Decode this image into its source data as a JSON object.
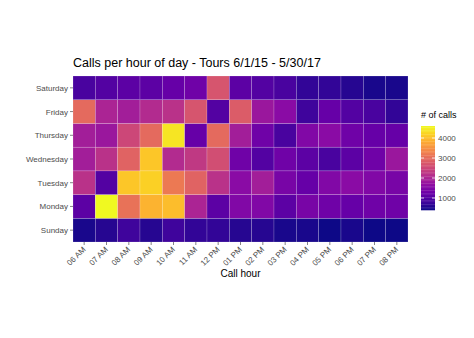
{
  "chart_data": {
    "type": "heatmap",
    "title": "Calls per hour of day - Tours 6/1/15 - 5/30/17",
    "xlabel": "Call hour",
    "x": [
      "06 AM",
      "07 AM",
      "08 AM",
      "09 AM",
      "10 AM",
      "11 AM",
      "12 PM",
      "01 PM",
      "02 PM",
      "03 PM",
      "04 PM",
      "05 PM",
      "06 PM",
      "07 PM",
      "08 PM"
    ],
    "y": [
      "Sunday",
      "Monday",
      "Tuesday",
      "Wednesday",
      "Thursday",
      "Friday",
      "Saturday"
    ],
    "values": [
      [
        500,
        600,
        800,
        600,
        800,
        700,
        700,
        600,
        600,
        500,
        500,
        400,
        500,
        400,
        400
      ],
      [
        1100,
        4600,
        3100,
        3900,
        4000,
        2000,
        1100,
        1500,
        1500,
        1100,
        1400,
        1300,
        1200,
        1300,
        1300
      ],
      [
        2200,
        1000,
        4100,
        4200,
        3200,
        2900,
        2200,
        1600,
        1900,
        1400,
        1200,
        1500,
        1600,
        1500,
        1400
      ],
      [
        1900,
        2200,
        2900,
        4100,
        2100,
        2300,
        2600,
        1300,
        1000,
        1300,
        1100,
        900,
        1100,
        1300,
        1800
      ],
      [
        1900,
        1800,
        2500,
        3000,
        4400,
        1200,
        3000,
        1900,
        1300,
        900,
        1500,
        1600,
        1300,
        1200,
        1200
      ],
      [
        3000,
        2000,
        1900,
        2100,
        2200,
        2700,
        1000,
        2800,
        1800,
        1600,
        800,
        1200,
        1000,
        900,
        700
      ],
      [
        900,
        1000,
        1100,
        1100,
        1200,
        1300,
        2700,
        1100,
        1000,
        900,
        700,
        700,
        600,
        500,
        500
      ]
    ],
    "colorbar": {
      "title": "# of calls",
      "range": [
        400,
        4600
      ],
      "ticks": [
        1000,
        2000,
        3000,
        4000
      ]
    }
  }
}
